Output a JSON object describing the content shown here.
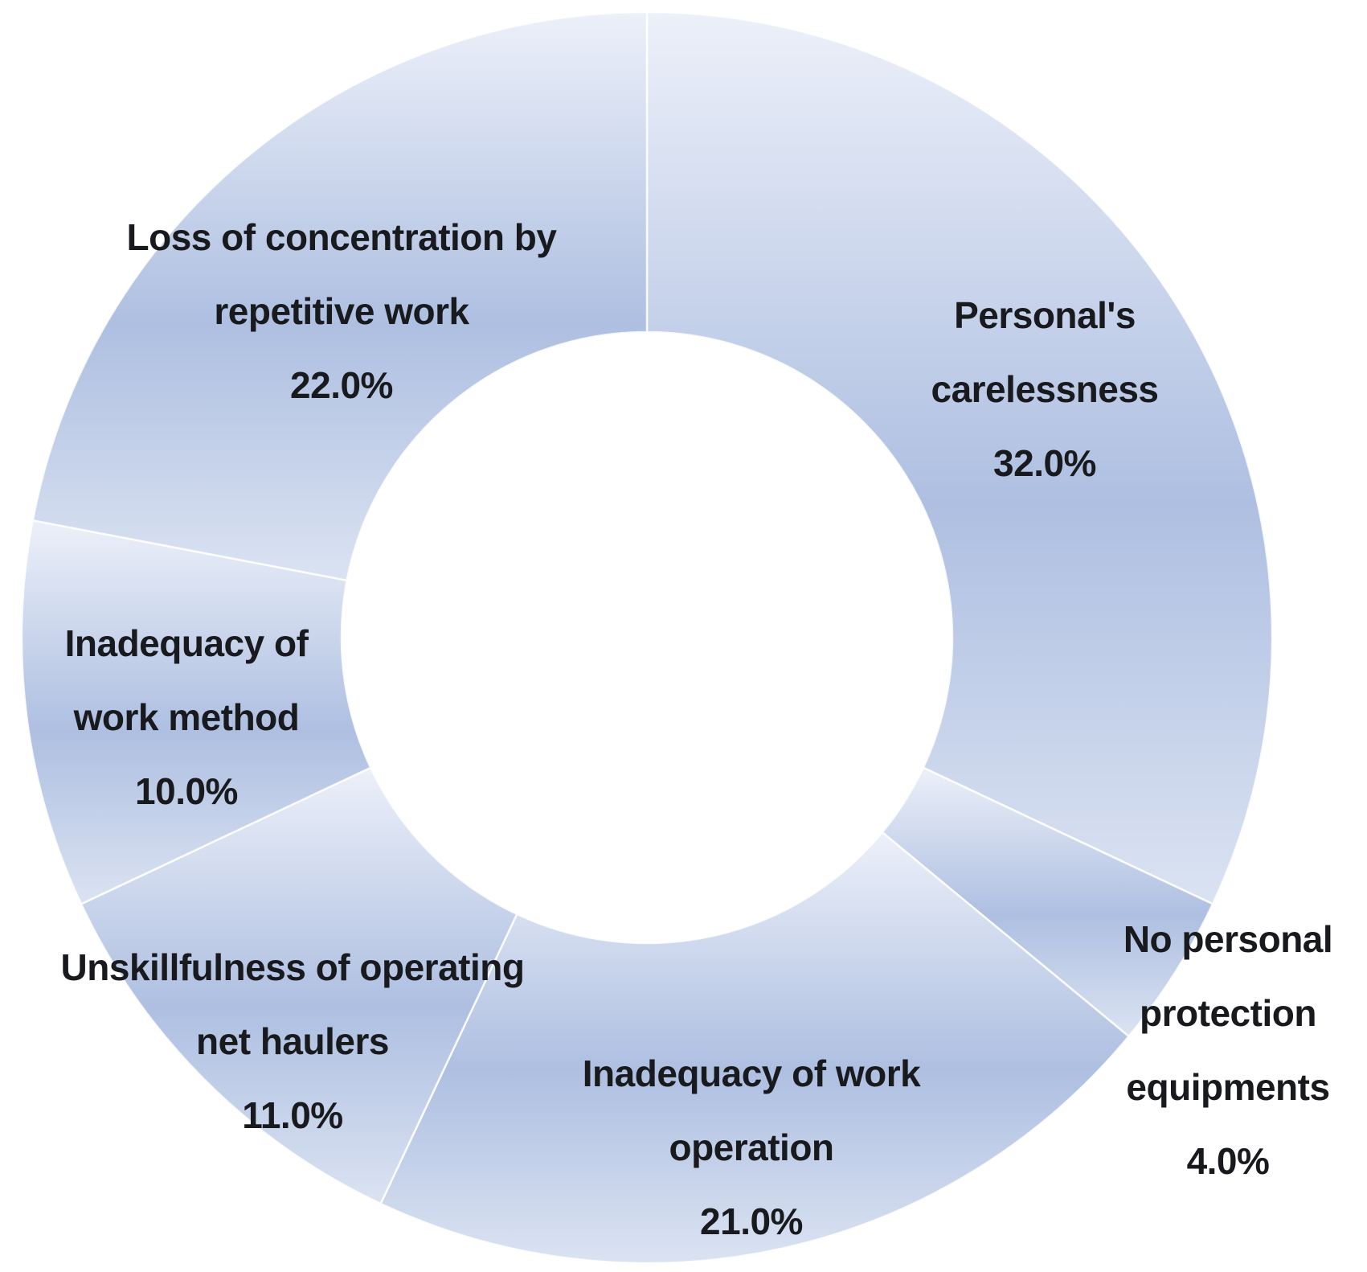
{
  "chart_data": {
    "type": "pie",
    "donut": true,
    "title": "",
    "categories": [
      "Personal's carelessness",
      "No personal protection equipments",
      "Inadequacy of work operation",
      "Unskillfulness of operating net haulers",
      "Inadequacy of work method",
      "Loss of concentration by repetitive work"
    ],
    "values": [
      32.0,
      4.0,
      21.0,
      11.0,
      10.0,
      22.0
    ],
    "unit": "%",
    "start_angle_deg": 0,
    "direction": "clockwise",
    "legend_position": "none",
    "gridlines": false,
    "labels_on_chart": [
      {
        "lines": [
          "Personal's",
          "carelessness",
          "32.0%"
        ]
      },
      {
        "lines": [
          "No personal",
          "protection",
          "equipments",
          "4.0%"
        ]
      },
      {
        "lines": [
          "Inadequacy of work",
          "operation",
          "21.0%"
        ]
      },
      {
        "lines": [
          "Unskillfulness of operating",
          "net haulers",
          "11.0%"
        ]
      },
      {
        "lines": [
          "Inadequacy of",
          "work method",
          "10.0%"
        ]
      },
      {
        "lines": [
          "Loss of concentration by",
          "repetitive work",
          "22.0%"
        ]
      }
    ],
    "colors": {
      "slice_light": "#ecf0f9",
      "slice_dark": "#aebfe1",
      "slice_edge_light": "#dbe3f2",
      "slice_separator": "#ffffff",
      "text": "#191a1e",
      "background": "#ffffff"
    }
  }
}
